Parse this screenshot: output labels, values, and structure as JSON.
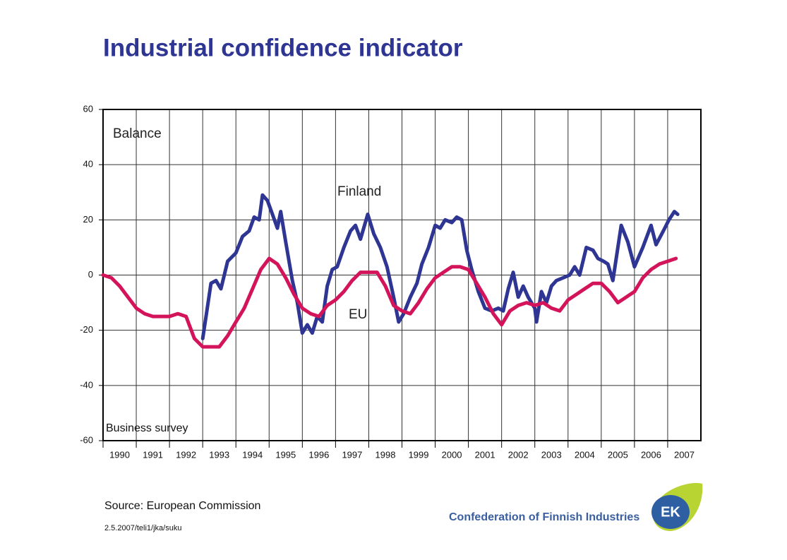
{
  "chart_data": {
    "type": "line",
    "title": "Industrial confidence indicator",
    "annotations": [
      "Balance",
      "Finland",
      "EU",
      "Business survey"
    ],
    "source": "Source: European Commission",
    "footnote": "2.5.2007/teli1/jka/suku",
    "organization": "Confederation of Finnish Industries",
    "logo": "EK",
    "xlim": [
      1990,
      2008
    ],
    "xticks": [
      1990,
      1991,
      1992,
      1993,
      1994,
      1995,
      1996,
      1997,
      1998,
      1999,
      2000,
      2001,
      2002,
      2003,
      2004,
      2005,
      2006,
      2007
    ],
    "ylim": [
      -60,
      60
    ],
    "yticks": [
      -60,
      -40,
      -20,
      0,
      20,
      40,
      60
    ],
    "grid": true,
    "series": [
      {
        "name": "Finland",
        "color": "#2e3592",
        "x": [
          1993.0,
          1993.1,
          1993.25,
          1993.4,
          1993.55,
          1993.75,
          1994.0,
          1994.2,
          1994.4,
          1994.55,
          1994.7,
          1994.8,
          1994.95,
          1995.1,
          1995.25,
          1995.35,
          1995.5,
          1995.7,
          1995.85,
          1996.0,
          1996.15,
          1996.3,
          1996.45,
          1996.6,
          1996.75,
          1996.9,
          1997.05,
          1997.25,
          1997.45,
          1997.6,
          1997.75,
          1997.97,
          1998.15,
          1998.35,
          1998.55,
          1998.75,
          1998.9,
          1999.05,
          1999.25,
          1999.45,
          1999.6,
          1999.8,
          2000.0,
          2000.15,
          2000.3,
          2000.5,
          2000.65,
          2000.8,
          2000.95,
          2001.1,
          2001.3,
          2001.5,
          2001.7,
          2001.9,
          2002.05,
          2002.2,
          2002.35,
          2002.5,
          2002.65,
          2002.8,
          2003.0,
          2003.05,
          2003.2,
          2003.35,
          2003.5,
          2003.65,
          2003.85,
          2004.05,
          2004.2,
          2004.35,
          2004.55,
          2004.75,
          2004.9,
          2005.07,
          2005.2,
          2005.35,
          2005.6,
          2005.8,
          2006.0,
          2006.25,
          2006.5,
          2006.65,
          2006.87,
          2007.04,
          2007.2,
          2007.3
        ],
        "values": [
          -23,
          -15,
          -3,
          -2,
          -5,
          5,
          8,
          14,
          16,
          21,
          20,
          29,
          27,
          22,
          17,
          23,
          12,
          -2,
          -10,
          -21,
          -18,
          -21,
          -15,
          -17,
          -4,
          2,
          3,
          10,
          16,
          18,
          13,
          22,
          15,
          10,
          3,
          -8,
          -17,
          -14,
          -8,
          -3,
          4,
          10,
          18,
          17,
          20,
          19,
          21,
          20,
          9,
          2,
          -6,
          -12,
          -13,
          -12,
          -13,
          -5,
          1,
          -8,
          -4,
          -8,
          -12,
          -17,
          -6,
          -10,
          -4,
          -2,
          -1,
          0,
          3,
          0,
          10,
          9,
          6,
          5,
          4,
          -2,
          18,
          12,
          3,
          10,
          18,
          11,
          16,
          20,
          23,
          22
        ]
      },
      {
        "name": "EU",
        "color": "#d4145a",
        "x": [
          1990.0,
          1990.25,
          1990.5,
          1990.75,
          1991.0,
          1991.25,
          1991.5,
          1991.75,
          1992.0,
          1992.25,
          1992.5,
          1992.75,
          1993.0,
          1993.25,
          1993.5,
          1993.75,
          1994.0,
          1994.25,
          1994.5,
          1994.75,
          1995.0,
          1995.25,
          1995.5,
          1995.75,
          1996.0,
          1996.25,
          1996.5,
          1996.75,
          1997.0,
          1997.25,
          1997.5,
          1997.75,
          1998.0,
          1998.25,
          1998.5,
          1998.75,
          1999.0,
          1999.25,
          1999.5,
          1999.75,
          2000.0,
          2000.25,
          2000.5,
          2000.75,
          2001.0,
          2001.25,
          2001.5,
          2001.75,
          2002.0,
          2002.25,
          2002.5,
          2002.75,
          2003.0,
          2003.25,
          2003.5,
          2003.75,
          2004.0,
          2004.25,
          2004.5,
          2004.75,
          2005.0,
          2005.25,
          2005.5,
          2005.75,
          2006.0,
          2006.25,
          2006.5,
          2006.75,
          2007.0,
          2007.25
        ],
        "values": [
          0,
          -1,
          -4,
          -8,
          -12,
          -14,
          -15,
          -15,
          -15,
          -14,
          -15,
          -23,
          -26,
          -26,
          -26,
          -22,
          -17,
          -12,
          -5,
          2,
          6,
          4,
          -1,
          -7,
          -12,
          -14,
          -15,
          -11,
          -9,
          -6,
          -2,
          1,
          1,
          1,
          -4,
          -11,
          -13,
          -14,
          -10,
          -5,
          -1,
          1,
          3,
          3,
          2,
          -3,
          -8,
          -14,
          -18,
          -13,
          -11,
          -10,
          -11,
          -10,
          -12,
          -13,
          -9,
          -7,
          -5,
          -3,
          -3,
          -6,
          -10,
          -8,
          -6,
          -1,
          2,
          4,
          5,
          6
        ]
      }
    ]
  }
}
